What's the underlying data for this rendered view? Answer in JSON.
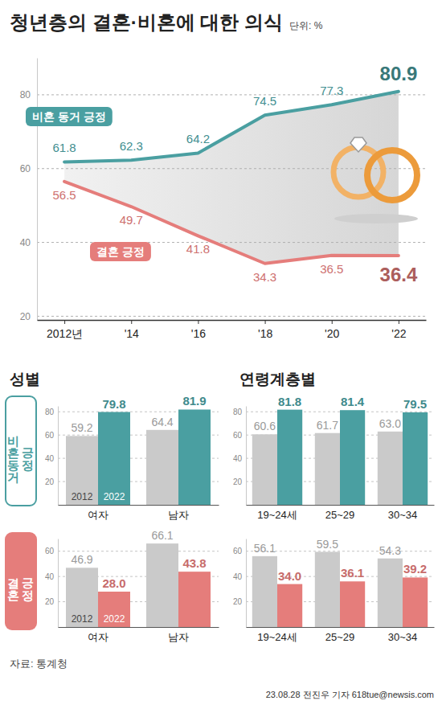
{
  "title": "청년층의 결혼·비혼에 대한 의식",
  "unit": "단위: %",
  "column_heads": [
    "성별",
    "연령계층별"
  ],
  "row_heads": [
    "비혼동거 긍정",
    "결혼 긍정"
  ],
  "source": "자료: 통계청",
  "credit": "23.08.28 전진우 기자 618tue@newsis.com",
  "chart_data": [
    {
      "type": "line",
      "categories": [
        "2012년",
        "'14",
        "'16",
        "'18",
        "'20",
        "'22"
      ],
      "series": [
        {
          "name": "비혼 동거 긍정",
          "color": "#4a9fa1",
          "values": [
            61.8,
            62.3,
            64.2,
            74.5,
            77.3,
            80.9
          ]
        },
        {
          "name": "결혼 긍정",
          "color": "#e57d7b",
          "values": [
            56.5,
            49.7,
            41.8,
            34.3,
            36.5,
            36.4
          ]
        }
      ],
      "ylim": [
        19,
        90
      ],
      "yticks": [
        20,
        40,
        60,
        80
      ],
      "grid": true,
      "data_labels": true
    },
    {
      "type": "bar",
      "categories": [
        "여자",
        "남자"
      ],
      "series": [
        {
          "name": "2012",
          "color": "#cacaca",
          "values": [
            59.2,
            64.4
          ]
        },
        {
          "name": "2022",
          "color": "#4a9fa1",
          "values": [
            79.8,
            81.9
          ]
        }
      ],
      "ylim": [
        0,
        85
      ],
      "yticks": [
        20,
        40,
        60,
        80
      ],
      "grid": true,
      "data_labels": true
    },
    {
      "type": "bar",
      "categories": [
        "19~24세",
        "25~29",
        "30~34"
      ],
      "series": [
        {
          "color": "#cacaca",
          "values": [
            60.6,
            61.7,
            63.0
          ],
          "value_labels": [
            "60.6",
            "61.7",
            "63.0"
          ]
        },
        {
          "color": "#4a9fa1",
          "values": [
            81.8,
            81.4,
            79.5
          ]
        }
      ],
      "ylim": [
        0,
        85
      ],
      "yticks": [
        20,
        40,
        60,
        80
      ],
      "grid": true,
      "data_labels": true
    },
    {
      "type": "bar",
      "categories": [
        "여자",
        "남자"
      ],
      "series": [
        {
          "name": "2012",
          "color": "#cacaca",
          "values": [
            46.9,
            66.1
          ]
        },
        {
          "name": "2022",
          "color": "#e57d7b",
          "values": [
            28.0,
            43.8
          ],
          "value_labels": [
            "28.0",
            "43.8"
          ]
        }
      ],
      "ylim": [
        0,
        70
      ],
      "yticks": [
        20,
        40,
        60
      ],
      "grid": true,
      "data_labels": true
    },
    {
      "type": "bar",
      "categories": [
        "19~24세",
        "25~29",
        "30~34"
      ],
      "series": [
        {
          "color": "#cacaca",
          "values": [
            56.1,
            59.5,
            54.3
          ]
        },
        {
          "color": "#e57d7b",
          "values": [
            34.0,
            36.1,
            39.2
          ],
          "value_labels": [
            "34.0",
            "36.1",
            "39.2"
          ]
        }
      ],
      "ylim": [
        0,
        70
      ],
      "yticks": [
        20,
        40,
        60
      ],
      "grid": true,
      "data_labels": true
    }
  ]
}
